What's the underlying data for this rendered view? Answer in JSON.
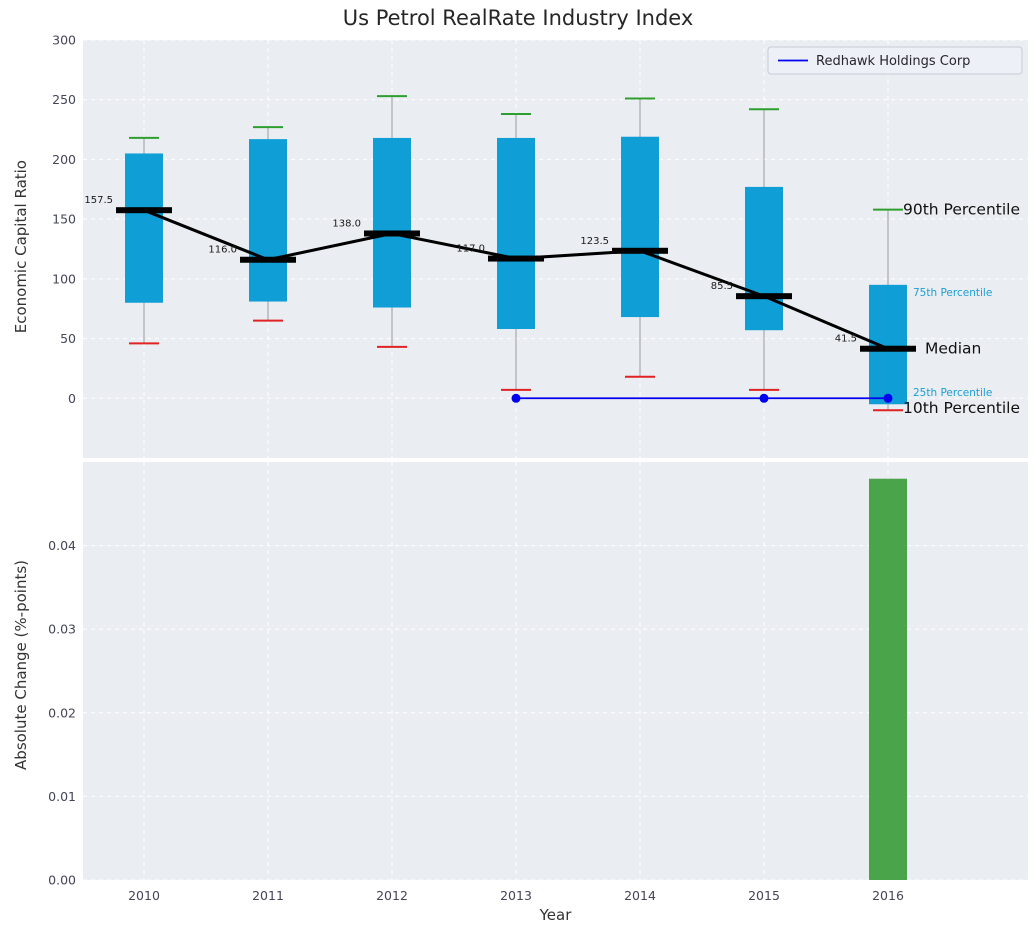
{
  "title": "Us Petrol RealRate Industry Index",
  "chart_data": [
    {
      "type": "boxplot",
      "title": "Us Petrol RealRate Industry Index",
      "ylabel": "Economic Capital Ratio",
      "ylim": [
        -50,
        300
      ],
      "yticks": [
        0,
        50,
        100,
        150,
        200,
        250,
        300
      ],
      "grid": true,
      "legend": {
        "label": "Redhawk Holdings Corp",
        "position": "upper right"
      },
      "categories": [
        "2010",
        "2011",
        "2012",
        "2013",
        "2014",
        "2015",
        "2016"
      ],
      "boxes": [
        {
          "year": "2010",
          "p10": 46,
          "p25": 80,
          "median": 157.5,
          "p75": 205,
          "p90": 218,
          "label": "157.5"
        },
        {
          "year": "2011",
          "p10": 65,
          "p25": 81,
          "median": 116.0,
          "p75": 217,
          "p90": 227,
          "label": "116.0"
        },
        {
          "year": "2012",
          "p10": 43,
          "p25": 76,
          "median": 138.0,
          "p75": 218,
          "p90": 253,
          "label": "138.0"
        },
        {
          "year": "2013",
          "p10": 7,
          "p25": 58,
          "median": 117.0,
          "p75": 218,
          "p90": 238,
          "label": "117.0"
        },
        {
          "year": "2014",
          "p10": 18,
          "p25": 68,
          "median": 123.5,
          "p75": 219,
          "p90": 251,
          "label": "123.5"
        },
        {
          "year": "2015",
          "p10": 7,
          "p25": 57,
          "median": 85.5,
          "p75": 177,
          "p90": 242,
          "label": "85.5"
        },
        {
          "year": "2016",
          "p10": -10,
          "p25": -5,
          "median": 41.5,
          "p75": 95,
          "p90": 158,
          "label": "41.5"
        }
      ],
      "company_series": {
        "name": "Redhawk Holdings Corp",
        "x": [
          "2013",
          "2015",
          "2016"
        ],
        "values": [
          0,
          0,
          0
        ]
      },
      "annotations": [
        {
          "text": "90th Percentile",
          "value": 158,
          "style": "large",
          "dx": 1
        },
        {
          "text": "75th Percentile",
          "value": 90,
          "style": "small",
          "dx": 11
        },
        {
          "text": "Median",
          "value": 41.5,
          "style": "large",
          "dx": 23
        },
        {
          "text": "25th Percentile",
          "value": 6,
          "style": "small",
          "dx": 11
        },
        {
          "text": "10th Percentile",
          "value": -8,
          "style": "large",
          "dx": 1
        }
      ],
      "colors": {
        "box": "#0f9ed6",
        "p90_cap": "#2e9e2e",
        "p10_cap": "#e02222",
        "median": "#000000",
        "whisker": "#9a9aa0",
        "company_line": "#0000ee",
        "panel_bg": "#eaedf2",
        "grid": "#ffffff",
        "tick_text": "#45455a",
        "annotation_large": "#111111",
        "annotation_small": "#1b9fd4"
      }
    },
    {
      "type": "bar",
      "ylabel": "Absolute Change (%-points)",
      "xlabel": "Year",
      "ylim": [
        0,
        0.05
      ],
      "yticks": [
        0,
        0.01,
        0.02,
        0.03,
        0.04
      ],
      "grid": true,
      "categories": [
        "2010",
        "2011",
        "2012",
        "2013",
        "2014",
        "2015",
        "2016"
      ],
      "values": [
        0,
        0,
        0,
        0,
        0,
        0,
        0.048
      ],
      "bar_color": "#4aa54a"
    }
  ]
}
